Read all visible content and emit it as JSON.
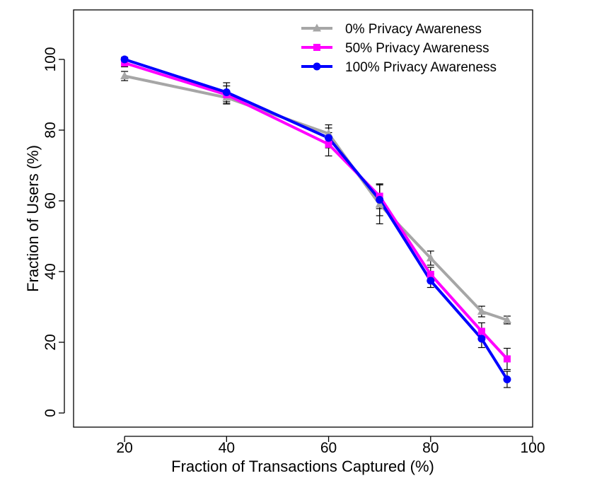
{
  "chart_data": {
    "type": "line",
    "title": "",
    "xlabel": "Fraction of Transactions Captured (%)",
    "ylabel": "Fraction of Users (%)",
    "xlim": [
      10,
      100
    ],
    "ylim": [
      -4,
      114
    ],
    "x_ticks": [
      20,
      40,
      60,
      80,
      100
    ],
    "y_ticks": [
      0,
      20,
      40,
      60,
      80,
      100
    ],
    "grid": false,
    "legend_position": "top-right",
    "x": [
      20,
      40,
      60,
      70,
      80,
      90,
      95
    ],
    "series": [
      {
        "name": "0% Privacy Awareness",
        "color": "#a6a6a6",
        "marker": "triangle",
        "values": [
          95.3,
          89.2,
          79.0,
          59.0,
          43.8,
          28.7,
          26.3
        ],
        "errors": [
          1.3,
          1.8,
          2.5,
          5.5,
          2.0,
          1.5,
          1.1
        ]
      },
      {
        "name": "50% Privacy Awareness",
        "color": "#ff00ff",
        "marker": "square",
        "values": [
          99.0,
          90.0,
          76.0,
          61.3,
          39.2,
          23.1,
          15.3
        ],
        "errors": [
          1.1,
          2.5,
          3.3,
          3.5,
          2.0,
          2.4,
          3.0
        ]
      },
      {
        "name": "100% Privacy Awareness",
        "color": "#0000ff",
        "marker": "circle",
        "values": [
          100.0,
          90.7,
          77.8,
          60.3,
          37.4,
          21.0,
          9.5
        ],
        "errors": [
          0.6,
          2.7,
          2.8,
          4.5,
          1.9,
          2.5,
          2.3
        ]
      }
    ]
  }
}
